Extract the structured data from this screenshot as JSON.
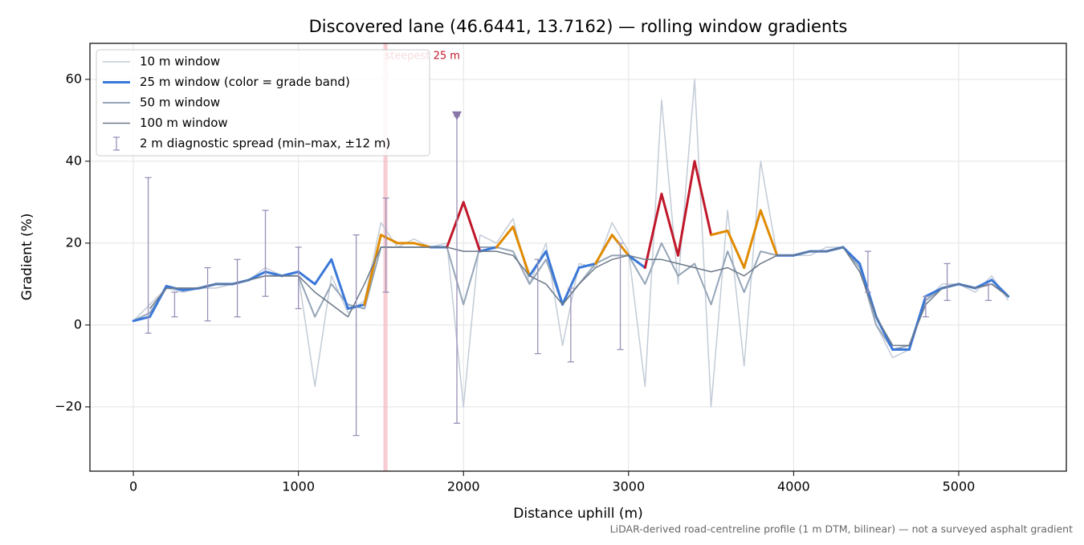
{
  "chart_data": {
    "type": "line",
    "title": "Discovered lane (46.6441, 13.7162) — rolling window gradients",
    "xlabel": "Distance uphill (m)",
    "ylabel": "Gradient (%)",
    "footnote": "LiDAR-derived road-centreline profile (1 m DTM, bilinear) — not a surveyed asphalt gradient",
    "xlim": [
      -263,
      5652
    ],
    "ylim": [
      -35.7,
      68.8
    ],
    "xticks": [
      0,
      1000,
      2000,
      3000,
      4000,
      5000
    ],
    "yticks": [
      {
        "value": -20,
        "label": "−20"
      },
      0,
      20,
      40,
      60
    ],
    "grid": true,
    "legend": "upper left",
    "x": [
      0,
      100,
      200,
      300,
      400,
      500,
      600,
      700,
      800,
      900,
      1000,
      1100,
      1200,
      1300,
      1400,
      1500,
      1600,
      1700,
      1800,
      1900,
      2000,
      2100,
      2200,
      2300,
      2400,
      2500,
      2600,
      2700,
      2800,
      2900,
      3000,
      3100,
      3200,
      3300,
      3400,
      3500,
      3600,
      3700,
      3800,
      3900,
      4000,
      4100,
      4200,
      4300,
      4400,
      4500,
      4600,
      4700,
      4800,
      4900,
      5000,
      5100,
      5200,
      5300
    ],
    "series": [
      {
        "name": "10 m window",
        "color": "#c3ccd8",
        "width": 1.5,
        "values": [
          1,
          5,
          9,
          8,
          9,
          9,
          10,
          11,
          14,
          12,
          12,
          -15,
          12,
          3,
          6,
          25,
          19,
          21,
          19,
          20,
          -20,
          22,
          20,
          26,
          10,
          20,
          -5,
          15,
          14,
          25,
          18,
          -15,
          55,
          10,
          60,
          -20,
          28,
          -10,
          40,
          17,
          17,
          17,
          19,
          19,
          14,
          0,
          -8,
          -6,
          6,
          10,
          10,
          8,
          12,
          6
        ]
      },
      {
        "name": "50 m window",
        "color": "#95a5b8",
        "width": 2,
        "values": [
          1,
          3,
          9,
          9,
          9,
          10,
          10,
          11,
          12,
          12,
          12,
          2,
          10,
          5,
          4,
          19,
          19,
          19,
          19,
          19,
          5,
          19,
          19,
          18,
          10,
          16,
          5,
          10,
          15,
          17,
          17,
          10,
          20,
          12,
          15,
          5,
          18,
          8,
          18,
          17,
          17,
          18,
          18,
          19,
          14,
          0,
          -6,
          -5,
          6,
          9,
          10,
          9,
          10,
          7
        ]
      },
      {
        "name": "25 m window (color = grade band)",
        "color": "#3a78d8",
        "width": 3,
        "band_limits": [
          20,
          30
        ],
        "band_colors": [
          "#3a78d8",
          "#e08a00",
          "#c0182a"
        ],
        "values": [
          1,
          2,
          9.5,
          8.5,
          9,
          10,
          10,
          11,
          13,
          12,
          13,
          10,
          16,
          4,
          5,
          22,
          20,
          20,
          19,
          19,
          30,
          18,
          19,
          24,
          12,
          18,
          5,
          14,
          15,
          22,
          17,
          14,
          32,
          17,
          40,
          22,
          23,
          14,
          28,
          17,
          17,
          18,
          18,
          19,
          15,
          2,
          -6,
          -6,
          7,
          9,
          10,
          9,
          11,
          7
        ]
      },
      {
        "name": "100 m window",
        "color": "#6b7888",
        "width": 1.5,
        "values": [
          null,
          4,
          9,
          9,
          9,
          10,
          10,
          11,
          12,
          12,
          12,
          8,
          5,
          2,
          10,
          19,
          19,
          19,
          19,
          19,
          18,
          18,
          18,
          17,
          12,
          10,
          5,
          10,
          14,
          16,
          17,
          16,
          16,
          15,
          14,
          13,
          14,
          12,
          15,
          17,
          17,
          18,
          18,
          19,
          13,
          2,
          -5,
          -5,
          5,
          9,
          10,
          9,
          10,
          7
        ]
      }
    ],
    "errorbars": {
      "name": "2 m diagnostic spread (min–max, ±12 m)",
      "color": "#9a90b8",
      "x": [
        90,
        250,
        450,
        630,
        800,
        1000,
        1350,
        1530,
        1960,
        2450,
        2650,
        2950,
        4450,
        4800,
        4930,
        5180
      ],
      "values": [
        15,
        5,
        6,
        8,
        15,
        9,
        -5,
        12,
        10,
        3,
        4,
        8,
        12,
        5,
        10,
        8
      ],
      "min": [
        -2,
        2,
        1,
        2,
        7,
        4,
        -27,
        8,
        -24,
        -7,
        -9,
        -6,
        8,
        2,
        6,
        6
      ],
      "max": [
        36,
        8,
        14,
        16,
        28,
        19,
        22,
        31,
        51,
        16,
        9,
        20,
        18,
        7,
        15,
        10
      ]
    },
    "peak_marker": {
      "x": 1960,
      "y": 51,
      "color": "#8878a8"
    },
    "highlight": {
      "x": [
        1515,
        1540
      ],
      "label": "steepest 25 m",
      "color": "#f4b8c0",
      "label_color": "#c0182a"
    }
  }
}
